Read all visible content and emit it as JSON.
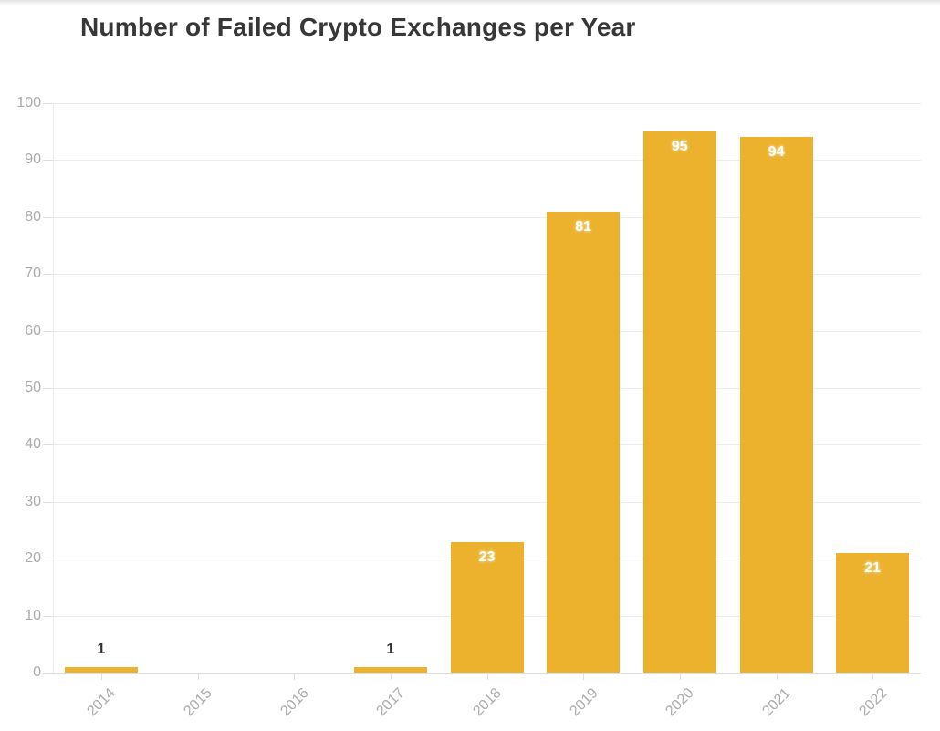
{
  "chart_data": {
    "type": "bar",
    "title": "Number of Failed Crypto Exchanges per Year",
    "categories": [
      "2014",
      "2015",
      "2016",
      "2017",
      "2018",
      "2019",
      "2020",
      "2021",
      "2022"
    ],
    "values": [
      1,
      0,
      0,
      1,
      23,
      81,
      95,
      94,
      21
    ],
    "xlabel": "",
    "ylabel": "",
    "ylim": [
      0,
      100
    ],
    "ytick_step": 10,
    "ytick_labels": [
      "0",
      "10",
      "20",
      "30",
      "40",
      "50",
      "60",
      "70",
      "80",
      "90",
      "100"
    ],
    "grid": true,
    "legend": false,
    "data_labels_shown": true,
    "colors": {
      "bar": "#ECB22D",
      "value_label_inside": "#FFFFFF",
      "value_label_outside": "#333333",
      "axis_tick_label": "#ABABAB",
      "gridline": "#ECECEC",
      "tick_line": "#DFDFDF",
      "axis_line": "#E0E0E0",
      "title": "#373737",
      "background": "#FFFFFF"
    }
  }
}
